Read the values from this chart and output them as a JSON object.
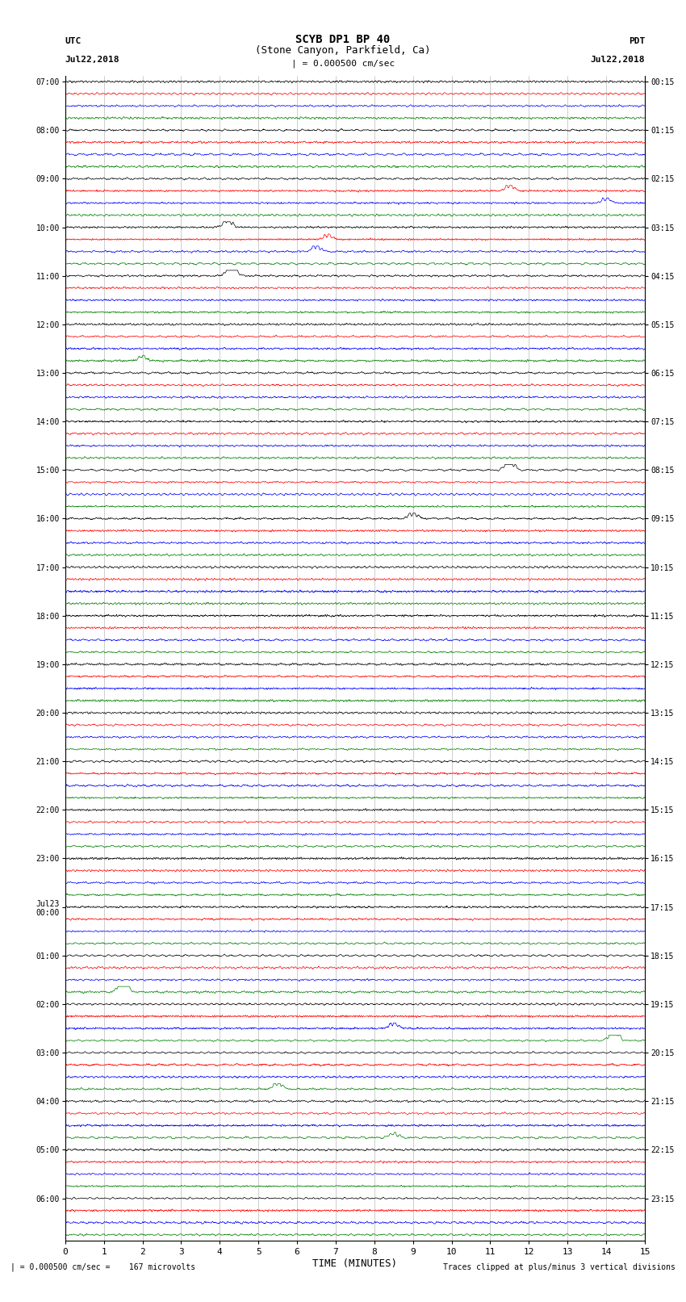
{
  "title_line1": "SCYB DP1 BP 40",
  "title_line2": "(Stone Canyon, Parkfield, Ca)",
  "scale_label": "| = 0.000500 cm/sec",
  "left_label": "UTC",
  "left_date": "Jul22,2018",
  "right_label": "PDT",
  "right_date": "Jul22,2018",
  "xlabel": "TIME (MINUTES)",
  "bottom_left": "| = 0.000500 cm/sec =    167 microvolts",
  "bottom_right": "Traces clipped at plus/minus 3 vertical divisions",
  "colors": [
    "black",
    "red",
    "blue",
    "green"
  ],
  "n_rows": 96,
  "bg_color": "#ffffff",
  "plot_bg": "#ffffff",
  "left_times_utc": [
    "07:00",
    "",
    "",
    "",
    "08:00",
    "",
    "",
    "",
    "09:00",
    "",
    "",
    "",
    "10:00",
    "",
    "",
    "",
    "11:00",
    "",
    "",
    "",
    "12:00",
    "",
    "",
    "",
    "13:00",
    "",
    "",
    "",
    "14:00",
    "",
    "",
    "",
    "15:00",
    "",
    "",
    "",
    "16:00",
    "",
    "",
    "",
    "17:00",
    "",
    "",
    "",
    "18:00",
    "",
    "",
    "",
    "19:00",
    "",
    "",
    "",
    "20:00",
    "",
    "",
    "",
    "21:00",
    "",
    "",
    "",
    "22:00",
    "",
    "",
    "",
    "23:00",
    "",
    "",
    "",
    "Jul23\n00:00",
    "",
    "",
    "",
    "01:00",
    "",
    "",
    "",
    "02:00",
    "",
    "",
    "",
    "03:00",
    "",
    "",
    "",
    "04:00",
    "",
    "",
    "",
    "05:00",
    "",
    "",
    "",
    "06:00",
    "",
    "",
    ""
  ],
  "right_times_pdt": [
    "00:15",
    "",
    "",
    "",
    "01:15",
    "",
    "",
    "",
    "02:15",
    "",
    "",
    "",
    "03:15",
    "",
    "",
    "",
    "04:15",
    "",
    "",
    "",
    "05:15",
    "",
    "",
    "",
    "06:15",
    "",
    "",
    "",
    "07:15",
    "",
    "",
    "",
    "08:15",
    "",
    "",
    "",
    "09:15",
    "",
    "",
    "",
    "10:15",
    "",
    "",
    "",
    "11:15",
    "",
    "",
    "",
    "12:15",
    "",
    "",
    "",
    "13:15",
    "",
    "",
    "",
    "14:15",
    "",
    "",
    "",
    "15:15",
    "",
    "",
    "",
    "16:15",
    "",
    "",
    "",
    "17:15",
    "",
    "",
    "",
    "18:15",
    "",
    "",
    "",
    "19:15",
    "",
    "",
    "",
    "20:15",
    "",
    "",
    "",
    "21:15",
    "",
    "",
    "",
    "22:15",
    "",
    "",
    "",
    "23:15",
    "",
    "",
    ""
  ],
  "events": [
    {
      "row": 12,
      "amp": 3.5,
      "t_min": 4.2,
      "color": "red"
    },
    {
      "row": 13,
      "amp": 2.0,
      "t_min": 6.8,
      "color": "blue"
    },
    {
      "row": 14,
      "amp": 2.5,
      "t_min": 6.5,
      "color": "green"
    },
    {
      "row": 16,
      "amp": 7.0,
      "t_min": 4.3,
      "color": "blue"
    },
    {
      "row": 23,
      "amp": 2.0,
      "t_min": 2.0,
      "color": "green"
    },
    {
      "row": 32,
      "amp": 4.5,
      "t_min": 11.5,
      "color": "black"
    },
    {
      "row": 36,
      "amp": 2.5,
      "t_min": 9.0,
      "color": "green"
    },
    {
      "row": 75,
      "amp": 7.0,
      "t_min": 1.5,
      "color": "blue"
    },
    {
      "row": 78,
      "amp": 2.5,
      "t_min": 8.5,
      "color": "green"
    },
    {
      "row": 79,
      "amp": 5.5,
      "t_min": 14.2,
      "color": "black"
    },
    {
      "row": 83,
      "amp": 3.0,
      "t_min": 5.5,
      "color": "blue"
    },
    {
      "row": 87,
      "amp": 2.0,
      "t_min": 8.5,
      "color": "blue"
    },
    {
      "row": 9,
      "amp": 2.5,
      "t_min": 11.5,
      "color": "green"
    },
    {
      "row": 10,
      "amp": 2.0,
      "t_min": 14.0,
      "color": "green"
    }
  ]
}
